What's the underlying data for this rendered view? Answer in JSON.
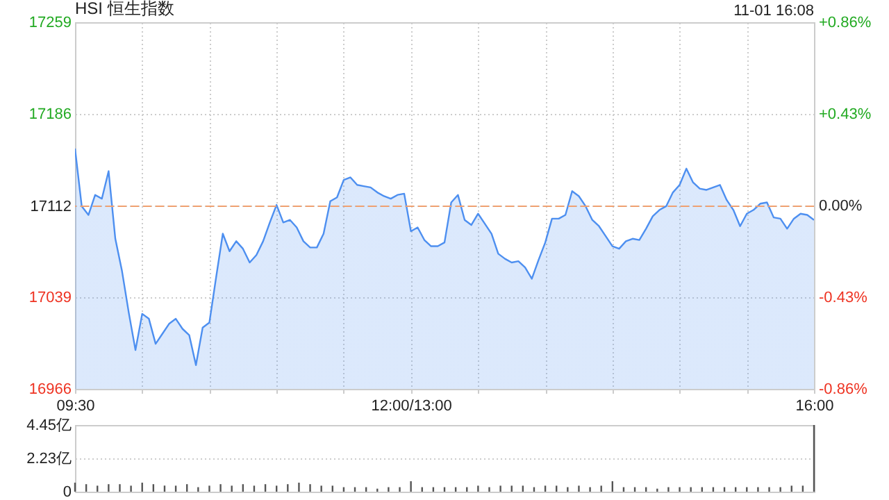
{
  "chart_data": [
    {
      "type": "area",
      "title": "HSI 恒生指数",
      "annotations": [
        "11-01 16:08"
      ],
      "categories": [
        "09:30",
        null,
        null,
        null,
        null,
        null,
        null,
        null,
        null,
        null,
        null,
        null,
        null,
        null,
        null,
        null,
        null,
        null,
        null,
        null,
        null,
        null,
        null,
        null,
        null,
        null,
        null,
        null,
        null,
        null,
        null,
        null,
        null,
        null,
        null,
        null,
        null,
        null,
        null,
        null,
        null,
        null,
        null,
        null,
        null,
        null,
        null,
        null,
        null,
        null,
        "12:00/13:00",
        null,
        null,
        null,
        null,
        null,
        null,
        null,
        null,
        null,
        null,
        null,
        null,
        null,
        null,
        null,
        null,
        null,
        null,
        null,
        null,
        null,
        null,
        null,
        null,
        null,
        null,
        null,
        null,
        null,
        null,
        null,
        null,
        null,
        null,
        null,
        null,
        null,
        null,
        null,
        null,
        null,
        null,
        null,
        null,
        null,
        null,
        null,
        null,
        null,
        null,
        null,
        null,
        null,
        null,
        null,
        null,
        null,
        null,
        null,
        "16:00"
      ],
      "series": [
        {
          "color": "#4d8ff0",
          "values": [
            17158,
            17112,
            17105,
            17121,
            17118,
            17140,
            17086,
            17060,
            17027,
            16997,
            17026,
            17022,
            17002,
            17010,
            17018,
            17022,
            17014,
            17009,
            16985,
            17015,
            17019,
            17055,
            17090,
            17076,
            17084,
            17078,
            17067,
            17073,
            17084,
            17099,
            17113,
            17099,
            17101,
            17095,
            17084,
            17079,
            17079,
            17090,
            17116,
            17119,
            17133,
            17135,
            17129,
            17128,
            17127,
            17123,
            17120,
            17118,
            17121,
            17122,
            17092,
            17095,
            17085,
            17080,
            17080,
            17083,
            17115,
            17121,
            17101,
            17097,
            17106,
            17098,
            17090,
            17074,
            17070,
            17067,
            17068,
            17063,
            17054,
            17069,
            17083,
            17102,
            17102,
            17105,
            17124,
            17120,
            17112,
            17101,
            17096,
            17088,
            17080,
            17078,
            17084,
            17086,
            17085,
            17094,
            17104,
            17109,
            17112,
            17123,
            17129,
            17142,
            17131,
            17126,
            17125,
            17127,
            17129,
            17117,
            17109,
            17096,
            17106,
            17109,
            17114,
            17115,
            17103,
            17102,
            17094,
            17102,
            17106,
            17105,
            17101
          ]
        }
      ],
      "ylim": [
        16966,
        17259
      ],
      "yticks": [
        16966,
        17039,
        17112,
        17186,
        17259
      ],
      "y2lim": [
        -0.86,
        0.86
      ],
      "y2ticks": [
        {
          "value": -0.86,
          "label": "-0.86%"
        },
        {
          "value": -0.43,
          "label": "-0.43%"
        },
        {
          "value": 0,
          "label": "0.00%"
        },
        {
          "value": 0.43,
          "label": "+0.43%"
        },
        {
          "value": 0.86,
          "label": "+0.86%"
        }
      ],
      "ref_lines": [
        {
          "axis": "y",
          "value": 17112,
          "color": "#f0a070",
          "line_style": "dashed"
        }
      ],
      "grid": true
    },
    {
      "type": "bar",
      "categories": [
        null,
        null,
        null,
        null,
        null,
        null,
        null,
        null,
        null,
        null,
        null,
        null,
        null,
        null,
        null,
        null,
        null,
        null,
        null,
        null,
        null,
        null,
        null,
        null,
        null,
        null,
        null,
        null,
        null,
        null,
        null,
        null,
        null,
        null,
        null,
        null,
        null,
        null,
        null,
        null,
        null,
        null,
        null,
        null,
        null,
        null,
        null,
        null,
        null,
        null,
        null,
        null,
        null,
        null,
        null,
        null,
        null,
        null,
        null,
        null,
        null,
        null,
        null,
        null,
        null,
        null,
        null
      ],
      "series": [
        {
          "color": "#555555",
          "values": [
            0.6,
            0.5,
            0.4,
            0.5,
            0.5,
            0.4,
            0.6,
            0.5,
            0.4,
            0.4,
            0.5,
            0.3,
            0.4,
            0.5,
            0.4,
            0.5,
            0.4,
            0.5,
            0.4,
            0.5,
            0.6,
            0.5,
            0.4,
            0.4,
            0.3,
            0.3,
            0.3,
            0.2,
            0.3,
            0.3,
            0.7,
            0.3,
            0.3,
            0.3,
            0.3,
            0.3,
            0.4,
            0.3,
            0.4,
            0.4,
            0.4,
            0.3,
            0.4,
            0.4,
            0.3,
            0.4,
            0.3,
            0.4,
            0.7,
            0.3,
            0.3,
            0.3,
            0.2,
            0.3,
            0.3,
            0.3,
            0.3,
            0.3,
            0.3,
            0.3,
            0.3,
            0.3,
            0.3,
            0.3,
            0.4,
            0.4,
            4.45
          ]
        }
      ],
      "ylim": [
        0,
        4.45
      ],
      "yticks": [
        0,
        {
          "value": 2.23,
          "label": "2.23亿"
        },
        {
          "value": 4.45,
          "label": "4.45亿"
        }
      ],
      "tick_labels": "y",
      "grid": "y"
    }
  ]
}
